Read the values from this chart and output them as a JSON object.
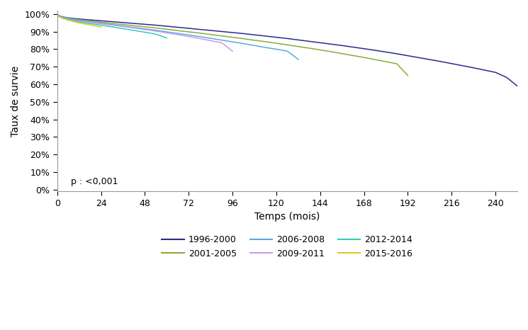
{
  "title": "",
  "xlabel": "Temps (mois)",
  "ylabel": "Taux de survie",
  "pvalue_text": "p : <0,001",
  "xlim": [
    0,
    252
  ],
  "ylim": [
    -0.01,
    1.02
  ],
  "xticks": [
    0,
    24,
    48,
    72,
    96,
    120,
    144,
    168,
    192,
    216,
    240
  ],
  "yticks": [
    0.0,
    0.1,
    0.2,
    0.3,
    0.4,
    0.5,
    0.6,
    0.7,
    0.8,
    0.9,
    1.0
  ],
  "series": [
    {
      "label": "1996-2000",
      "color": "#2b2b8f",
      "points": [
        [
          0,
          1.0
        ],
        [
          1,
          0.991
        ],
        [
          3,
          0.984
        ],
        [
          6,
          0.979
        ],
        [
          9,
          0.975
        ],
        [
          12,
          0.972
        ],
        [
          18,
          0.967
        ],
        [
          24,
          0.962
        ],
        [
          30,
          0.957
        ],
        [
          36,
          0.952
        ],
        [
          42,
          0.947
        ],
        [
          48,
          0.942
        ],
        [
          54,
          0.937
        ],
        [
          60,
          0.931
        ],
        [
          66,
          0.925
        ],
        [
          72,
          0.919
        ],
        [
          78,
          0.913
        ],
        [
          84,
          0.907
        ],
        [
          90,
          0.901
        ],
        [
          96,
          0.895
        ],
        [
          102,
          0.889
        ],
        [
          108,
          0.882
        ],
        [
          114,
          0.875
        ],
        [
          120,
          0.868
        ],
        [
          126,
          0.861
        ],
        [
          132,
          0.853
        ],
        [
          138,
          0.845
        ],
        [
          144,
          0.837
        ],
        [
          150,
          0.829
        ],
        [
          156,
          0.821
        ],
        [
          162,
          0.812
        ],
        [
          168,
          0.803
        ],
        [
          174,
          0.794
        ],
        [
          180,
          0.784
        ],
        [
          186,
          0.774
        ],
        [
          192,
          0.763
        ],
        [
          198,
          0.752
        ],
        [
          204,
          0.741
        ],
        [
          210,
          0.73
        ],
        [
          216,
          0.718
        ],
        [
          222,
          0.706
        ],
        [
          228,
          0.694
        ],
        [
          234,
          0.681
        ],
        [
          240,
          0.668
        ],
        [
          246,
          0.64
        ],
        [
          252,
          0.59
        ]
      ]
    },
    {
      "label": "2001-2005",
      "color": "#8aab38",
      "points": [
        [
          0,
          1.0
        ],
        [
          1,
          0.99
        ],
        [
          3,
          0.983
        ],
        [
          6,
          0.977
        ],
        [
          9,
          0.972
        ],
        [
          12,
          0.968
        ],
        [
          18,
          0.961
        ],
        [
          24,
          0.954
        ],
        [
          30,
          0.947
        ],
        [
          36,
          0.941
        ],
        [
          42,
          0.934
        ],
        [
          48,
          0.928
        ],
        [
          54,
          0.921
        ],
        [
          60,
          0.914
        ],
        [
          66,
          0.906
        ],
        [
          72,
          0.899
        ],
        [
          78,
          0.892
        ],
        [
          84,
          0.884
        ],
        [
          90,
          0.876
        ],
        [
          96,
          0.868
        ],
        [
          102,
          0.86
        ],
        [
          108,
          0.851
        ],
        [
          114,
          0.843
        ],
        [
          120,
          0.834
        ],
        [
          126,
          0.825
        ],
        [
          132,
          0.815
        ],
        [
          138,
          0.806
        ],
        [
          144,
          0.796
        ],
        [
          150,
          0.786
        ],
        [
          156,
          0.775
        ],
        [
          162,
          0.764
        ],
        [
          168,
          0.753
        ],
        [
          174,
          0.741
        ],
        [
          180,
          0.729
        ],
        [
          186,
          0.717
        ],
        [
          192,
          0.65
        ]
      ]
    },
    {
      "label": "2006-2008",
      "color": "#55aadd",
      "points": [
        [
          0,
          1.0
        ],
        [
          1,
          0.989
        ],
        [
          3,
          0.981
        ],
        [
          6,
          0.975
        ],
        [
          9,
          0.969
        ],
        [
          12,
          0.964
        ],
        [
          18,
          0.956
        ],
        [
          24,
          0.948
        ],
        [
          30,
          0.94
        ],
        [
          36,
          0.932
        ],
        [
          42,
          0.924
        ],
        [
          48,
          0.916
        ],
        [
          54,
          0.908
        ],
        [
          60,
          0.899
        ],
        [
          66,
          0.89
        ],
        [
          72,
          0.881
        ],
        [
          78,
          0.872
        ],
        [
          84,
          0.862
        ],
        [
          90,
          0.852
        ],
        [
          96,
          0.842
        ],
        [
          102,
          0.832
        ],
        [
          108,
          0.821
        ],
        [
          114,
          0.81
        ],
        [
          120,
          0.8
        ],
        [
          126,
          0.789
        ],
        [
          132,
          0.742
        ]
      ]
    },
    {
      "label": "2009-2011",
      "color": "#cc99ee",
      "points": [
        [
          0,
          1.0
        ],
        [
          1,
          0.988
        ],
        [
          3,
          0.98
        ],
        [
          6,
          0.973
        ],
        [
          9,
          0.966
        ],
        [
          12,
          0.961
        ],
        [
          18,
          0.953
        ],
        [
          24,
          0.945
        ],
        [
          30,
          0.937
        ],
        [
          36,
          0.929
        ],
        [
          42,
          0.921
        ],
        [
          48,
          0.912
        ],
        [
          54,
          0.903
        ],
        [
          60,
          0.893
        ],
        [
          66,
          0.883
        ],
        [
          72,
          0.872
        ],
        [
          78,
          0.861
        ],
        [
          84,
          0.849
        ],
        [
          90,
          0.837
        ],
        [
          96,
          0.789
        ]
      ]
    },
    {
      "label": "2012-2014",
      "color": "#33ccbb",
      "points": [
        [
          0,
          1.0
        ],
        [
          1,
          0.987
        ],
        [
          3,
          0.978
        ],
        [
          6,
          0.97
        ],
        [
          9,
          0.962
        ],
        [
          12,
          0.956
        ],
        [
          18,
          0.946
        ],
        [
          24,
          0.937
        ],
        [
          30,
          0.927
        ],
        [
          36,
          0.917
        ],
        [
          42,
          0.907
        ],
        [
          48,
          0.897
        ],
        [
          54,
          0.886
        ],
        [
          60,
          0.864
        ]
      ]
    },
    {
      "label": "2015-2016",
      "color": "#ddcc22",
      "points": [
        [
          0,
          1.0
        ],
        [
          1,
          0.985
        ],
        [
          3,
          0.975
        ],
        [
          6,
          0.966
        ],
        [
          9,
          0.957
        ],
        [
          12,
          0.95
        ],
        [
          18,
          0.938
        ],
        [
          24,
          0.926
        ]
      ]
    }
  ],
  "legend_order": [
    "1996-2000",
    "2001-2005",
    "2006-2008",
    "2009-2011",
    "2012-2014",
    "2015-2016"
  ],
  "background_color": "#ffffff",
  "spine_color": "#999999"
}
